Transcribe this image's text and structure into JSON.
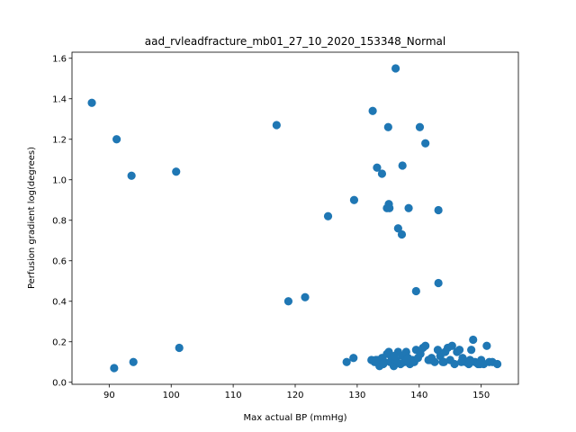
{
  "chart_data": {
    "type": "scatter",
    "title": "aad_rvleadfracture_mb01_27_10_2020_153348_Normal",
    "xlabel": "Max actual BP (mmHg)",
    "ylabel": "Perfusion gradient log(degrees)",
    "xlim": [
      84,
      156
    ],
    "ylim": [
      -0.01,
      1.63
    ],
    "xticks": [
      90,
      100,
      110,
      120,
      130,
      140,
      150
    ],
    "yticks": [
      0.0,
      0.2,
      0.4,
      0.6,
      0.8,
      1.0,
      1.2,
      1.4,
      1.6
    ],
    "xtick_labels": [
      "90",
      "100",
      "110",
      "120",
      "130",
      "140",
      "150"
    ],
    "ytick_labels": [
      "0.0",
      "0.2",
      "0.4",
      "0.6",
      "0.8",
      "1.0",
      "1.2",
      "1.4",
      "1.6"
    ],
    "marker_color": "#1f77b4",
    "grid": false,
    "points": [
      [
        87.2,
        1.38
      ],
      [
        91.2,
        1.2
      ],
      [
        93.6,
        1.02
      ],
      [
        100.8,
        1.04
      ],
      [
        117.0,
        1.27
      ],
      [
        132.5,
        1.34
      ],
      [
        136.2,
        1.55
      ],
      [
        135.0,
        1.26
      ],
      [
        140.1,
        1.26
      ],
      [
        141.0,
        1.18
      ],
      [
        133.2,
        1.06
      ],
      [
        134.0,
        1.03
      ],
      [
        137.3,
        1.07
      ],
      [
        129.5,
        0.9
      ],
      [
        125.3,
        0.82
      ],
      [
        135.1,
        0.88
      ],
      [
        134.8,
        0.86
      ],
      [
        135.2,
        0.86
      ],
      [
        138.3,
        0.86
      ],
      [
        143.1,
        0.85
      ],
      [
        136.6,
        0.76
      ],
      [
        137.2,
        0.73
      ],
      [
        139.5,
        0.45
      ],
      [
        143.1,
        0.49
      ],
      [
        118.9,
        0.4
      ],
      [
        121.6,
        0.42
      ],
      [
        90.8,
        0.07
      ],
      [
        93.9,
        0.1
      ],
      [
        101.3,
        0.17
      ],
      [
        128.3,
        0.1
      ],
      [
        129.4,
        0.12
      ],
      [
        132.3,
        0.11
      ],
      [
        132.8,
        0.1
      ],
      [
        133.2,
        0.11
      ],
      [
        133.6,
        0.08
      ],
      [
        134.0,
        0.12
      ],
      [
        134.4,
        0.1
      ],
      [
        134.8,
        0.14
      ],
      [
        135.1,
        0.15
      ],
      [
        135.3,
        0.1
      ],
      [
        135.6,
        0.12
      ],
      [
        135.9,
        0.08
      ],
      [
        136.3,
        0.11
      ],
      [
        136.6,
        0.15
      ],
      [
        137.0,
        0.09
      ],
      [
        137.3,
        0.13
      ],
      [
        137.6,
        0.1
      ],
      [
        137.9,
        0.15
      ],
      [
        138.2,
        0.12
      ],
      [
        138.5,
        0.09
      ],
      [
        138.9,
        0.11
      ],
      [
        139.2,
        0.1
      ],
      [
        139.5,
        0.16
      ],
      [
        139.8,
        0.12
      ],
      [
        140.2,
        0.14
      ],
      [
        140.6,
        0.17
      ],
      [
        141.0,
        0.18
      ],
      [
        141.5,
        0.11
      ],
      [
        142.0,
        0.12
      ],
      [
        142.5,
        0.1
      ],
      [
        143.0,
        0.16
      ],
      [
        143.4,
        0.13
      ],
      [
        143.8,
        0.1
      ],
      [
        144.2,
        0.15
      ],
      [
        144.6,
        0.17
      ],
      [
        145.0,
        0.11
      ],
      [
        145.3,
        0.18
      ],
      [
        145.7,
        0.09
      ],
      [
        146.1,
        0.15
      ],
      [
        146.5,
        0.16
      ],
      [
        147.0,
        0.12
      ],
      [
        147.5,
        0.1
      ],
      [
        148.0,
        0.09
      ],
      [
        148.4,
        0.16
      ],
      [
        148.7,
        0.21
      ],
      [
        149.0,
        0.1
      ],
      [
        149.5,
        0.09
      ],
      [
        150.0,
        0.11
      ],
      [
        150.4,
        0.09
      ],
      [
        150.9,
        0.18
      ],
      [
        151.3,
        0.1
      ],
      [
        151.8,
        0.1
      ],
      [
        152.6,
        0.09
      ],
      [
        133.0,
        0.11
      ],
      [
        134.2,
        0.09
      ],
      [
        136.0,
        0.13
      ],
      [
        138.0,
        0.11
      ],
      [
        141.8,
        0.11
      ],
      [
        144.0,
        0.1
      ],
      [
        146.8,
        0.1
      ],
      [
        148.2,
        0.11
      ],
      [
        149.8,
        0.09
      ]
    ]
  }
}
